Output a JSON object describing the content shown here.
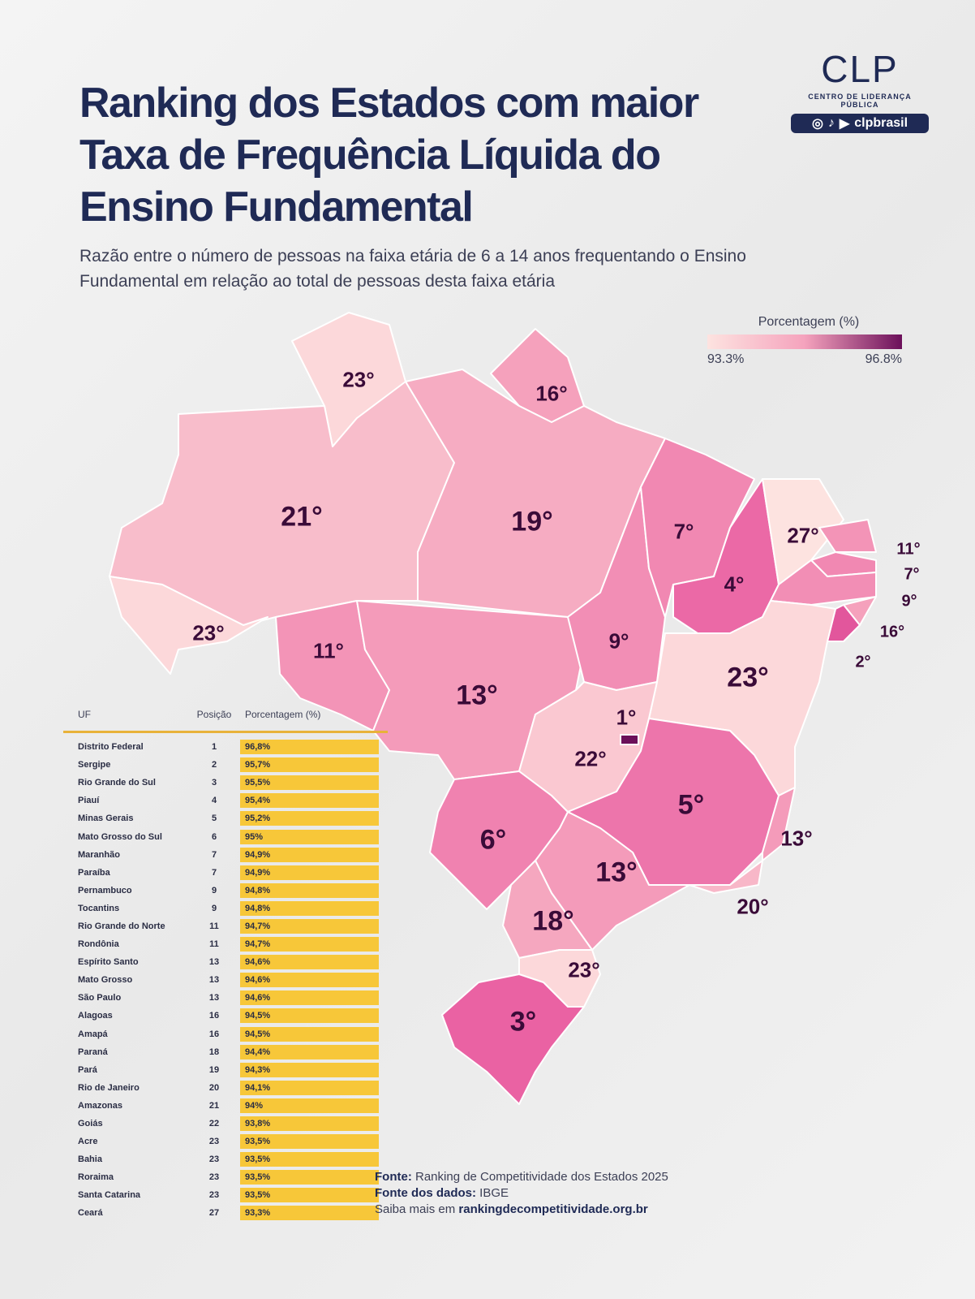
{
  "title": "Ranking dos Estados com maior Taxa de Frequência Líquida do Ensino Fundamental",
  "subtitle": "Razão entre o número de pessoas na faixa etária de 6 a 14 anos frequentando o Ensino Fundamental em relação ao total de pessoas desta faixa etária",
  "logo": {
    "mark": "CLP",
    "name": "CENTRO DE LIDERANÇA PÚBLICA",
    "handle": "clpbrasil"
  },
  "legend": {
    "title": "Porcentagem (%)",
    "min": "93.3%",
    "max": "96.8%",
    "min_value": 93.3,
    "max_value": 96.8,
    "color_low": "#fde3e0",
    "color_high": "#6b0f5a"
  },
  "table": {
    "headers": [
      "UF",
      "Posição",
      "Porcentagem (%)"
    ],
    "rows": [
      [
        "Distrito Federal",
        "1",
        "96,8%"
      ],
      [
        "Sergipe",
        "2",
        "95,7%"
      ],
      [
        "Rio Grande do Sul",
        "3",
        "95,5%"
      ],
      [
        "Piauí",
        "4",
        "95,4%"
      ],
      [
        "Minas Gerais",
        "5",
        "95,2%"
      ],
      [
        "Mato Grosso do Sul",
        "6",
        "95%"
      ],
      [
        "Maranhão",
        "7",
        "94,9%"
      ],
      [
        "Paraíba",
        "7",
        "94,9%"
      ],
      [
        "Pernambuco",
        "9",
        "94,8%"
      ],
      [
        "Tocantins",
        "9",
        "94,8%"
      ],
      [
        "Rio Grande do Norte",
        "11",
        "94,7%"
      ],
      [
        "Rondônia",
        "11",
        "94,7%"
      ],
      [
        "Espírito Santo",
        "13",
        "94,6%"
      ],
      [
        "Mato Grosso",
        "13",
        "94,6%"
      ],
      [
        "São Paulo",
        "13",
        "94,6%"
      ],
      [
        "Alagoas",
        "16",
        "94,5%"
      ],
      [
        "Amapá",
        "16",
        "94,5%"
      ],
      [
        "Paraná",
        "18",
        "94,4%"
      ],
      [
        "Pará",
        "19",
        "94,3%"
      ],
      [
        "Rio de Janeiro",
        "20",
        "94,1%"
      ],
      [
        "Amazonas",
        "21",
        "94%"
      ],
      [
        "Goiás",
        "22",
        "93,8%"
      ],
      [
        "Acre",
        "23",
        "93,5%"
      ],
      [
        "Bahia",
        "23",
        "93,5%"
      ],
      [
        "Roraima",
        "23",
        "93,5%"
      ],
      [
        "Santa Catarina",
        "23",
        "93,5%"
      ],
      [
        "Ceará",
        "27",
        "93,3%"
      ]
    ]
  },
  "chart_data": {
    "type": "choropleth",
    "title": "Ranking dos Estados com maior Taxa de Frequência Líquida do Ensino Fundamental",
    "legend": "top-right",
    "states": {
      "DF": {
        "rank": "1°",
        "value": 96.8
      },
      "SE": {
        "rank": "2°",
        "value": 95.7
      },
      "RS": {
        "rank": "3°",
        "value": 95.5
      },
      "PI": {
        "rank": "4°",
        "value": 95.4
      },
      "MG": {
        "rank": "5°",
        "value": 95.2
      },
      "MS": {
        "rank": "6°",
        "value": 95.0
      },
      "MA": {
        "rank": "7°",
        "value": 94.9
      },
      "PB": {
        "rank": "7°",
        "value": 94.9
      },
      "PE": {
        "rank": "9°",
        "value": 94.8
      },
      "TO": {
        "rank": "9°",
        "value": 94.8
      },
      "RN": {
        "rank": "11°",
        "value": 94.7
      },
      "RO": {
        "rank": "11°",
        "value": 94.7
      },
      "ES": {
        "rank": "13°",
        "value": 94.6
      },
      "MT": {
        "rank": "13°",
        "value": 94.6
      },
      "SP": {
        "rank": "13°",
        "value": 94.6
      },
      "AL": {
        "rank": "16°",
        "value": 94.5
      },
      "AP": {
        "rank": "16°",
        "value": 94.5
      },
      "PR": {
        "rank": "18°",
        "value": 94.4
      },
      "PA": {
        "rank": "19°",
        "value": 94.3
      },
      "RJ": {
        "rank": "20°",
        "value": 94.1
      },
      "AM": {
        "rank": "21°",
        "value": 94.0
      },
      "GO": {
        "rank": "22°",
        "value": 93.8
      },
      "AC": {
        "rank": "23°",
        "value": 93.5
      },
      "BA": {
        "rank": "23°",
        "value": 93.5
      },
      "RR": {
        "rank": "23°",
        "value": 93.5
      },
      "SC": {
        "rank": "23°",
        "value": 93.5
      },
      "CE": {
        "rank": "27°",
        "value": 93.3
      }
    }
  },
  "source": {
    "fonte_label": "Fonte:",
    "fonte": "Ranking de Competitividade dos Estados 2025",
    "dados_label": "Fonte dos dados:",
    "dados": "IBGE",
    "saiba_label": "Saiba mais em",
    "site": "rankingdecompetitividade.org.br"
  }
}
